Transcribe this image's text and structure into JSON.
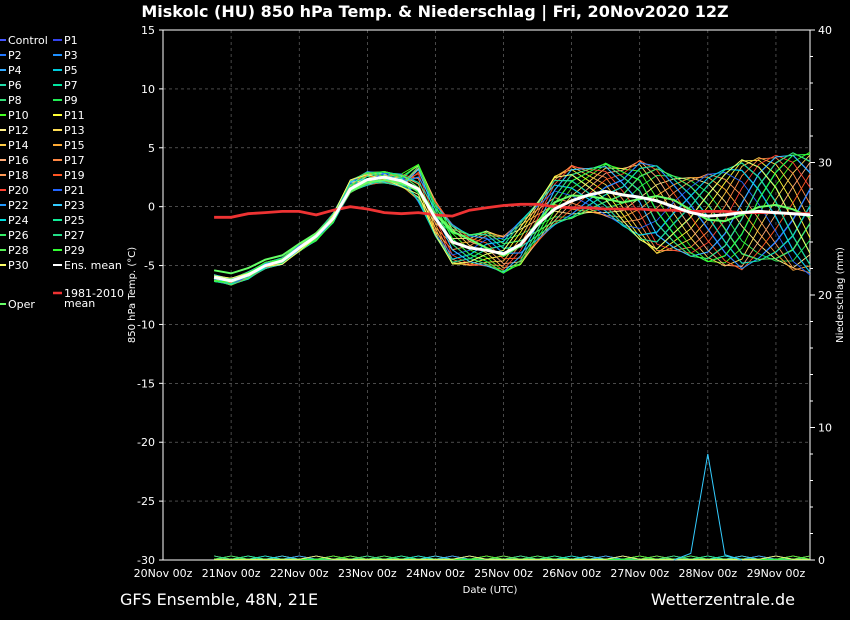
{
  "chart_data": {
    "type": "line",
    "title": "Miskolc  (HU)  850 hPa Temp. & Niederschlag | Fri, 20Nov2020 12Z",
    "footer_left": "GFS Ensemble, 48N, 21E",
    "footer_right": "Wetterzentrale.de",
    "xlabel": "Date (UTC)",
    "ylabel_left": "850 hPa Temp. (°C)",
    "ylabel_right": "Niederschlag (mm)",
    "ylim_left": [
      -30,
      15
    ],
    "ylim_right": [
      0,
      40
    ],
    "yticks_left": [
      15,
      10,
      5,
      0,
      -5,
      -10,
      -15,
      -20,
      -25,
      -30
    ],
    "yticks_right": [
      40,
      30,
      20,
      10,
      0
    ],
    "xlim": [
      0,
      228
    ],
    "xticks": [
      "20Nov 00z",
      "21Nov 00z",
      "22Nov 00z",
      "23Nov 00z",
      "24Nov 00z",
      "25Nov 00z",
      "26Nov 00z",
      "27Nov 00z",
      "28Nov 00z",
      "29Nov 00z"
    ],
    "grid": true,
    "legend": {
      "placement": "left",
      "columns": [
        [
          "Control",
          "P2",
          "P4",
          "P6",
          "P8",
          "P10",
          "P12",
          "P14",
          "P16",
          "P18",
          "P20",
          "P22",
          "P24",
          "P26",
          "P28",
          "P30"
        ],
        [
          "P1",
          "P3",
          "P5",
          "P7",
          "P9",
          "P11",
          "P13",
          "P15",
          "P17",
          "P19",
          "P21",
          "P23",
          "P25",
          "P27",
          "P29",
          "Ens. mean"
        ]
      ],
      "extra": [
        "Oper",
        "1981-2010",
        "mean"
      ]
    },
    "colors": {
      "control": "#4455ff",
      "p1": "#3344ee",
      "p2": "#2277ff",
      "p3": "#1e90ff",
      "p4": "#33aaff",
      "p5": "#00ccdd",
      "p6": "#22ddaa",
      "p7": "#00e5a0",
      "p8": "#33dd77",
      "p9": "#22ee55",
      "p10": "#44ff22",
      "p11": "#ffff33",
      "p12": "#ffee88",
      "p13": "#ffdd55",
      "p14": "#ffcc44",
      "p15": "#ffaa33",
      "p16": "#ffaa77",
      "p17": "#ff8844",
      "p18": "#ff9955",
      "p19": "#ff5522",
      "p20": "#ff4433",
      "p21": "#2266ff",
      "p22": "#2299ff",
      "p23": "#33ccff",
      "p24": "#00dddd",
      "p25": "#11ee99",
      "p26": "#33ee66",
      "p27": "#22dd88",
      "p28": "#55ee55",
      "p29": "#33ff33",
      "p30": "#ffff66",
      "mean": "#ffffff",
      "oper": "#66ff66",
      "climate": "#ee3333"
    },
    "x_hours": [
      18,
      24,
      30,
      36,
      42,
      48,
      54,
      60,
      66,
      72,
      78,
      84,
      90,
      96,
      102,
      108,
      114,
      120,
      126,
      132,
      138,
      144,
      150,
      156,
      162,
      168,
      174,
      180,
      186,
      192,
      198,
      204,
      210,
      216,
      222,
      228
    ],
    "ens_mean": [
      -6.0,
      -6.3,
      -5.8,
      -5.0,
      -4.6,
      -3.5,
      -2.5,
      -1.0,
      1.5,
      2.3,
      2.5,
      2.2,
      1.5,
      -1.0,
      -3.0,
      -3.5,
      -3.7,
      -4.0,
      -3.2,
      -1.5,
      -0.2,
      0.5,
      1.0,
      1.3,
      1.0,
      0.8,
      0.5,
      0.0,
      -0.5,
      -0.8,
      -0.7,
      -0.5,
      -0.4,
      -0.5,
      -0.6,
      -0.7
    ],
    "climate_mean": [
      -0.9,
      -0.9,
      -0.6,
      -0.5,
      -0.4,
      -0.4,
      -0.7,
      -0.3,
      0.0,
      -0.2,
      -0.5,
      -0.6,
      -0.5,
      -0.7,
      -0.8,
      -0.3,
      -0.1,
      0.1,
      0.2,
      0.2,
      0.0,
      -0.1,
      -0.1,
      -0.2,
      -0.2,
      -0.2,
      -0.3,
      -0.3,
      -0.4,
      -0.4,
      -0.4,
      -0.5,
      -0.5,
      -0.5,
      -0.6,
      -0.6
    ],
    "precip_spike": {
      "series": "p23",
      "x_hours": [
        186,
        192,
        198
      ],
      "values_mm": [
        0.5,
        8,
        0.4
      ]
    },
    "member_spread": {
      "x_hours": [
        18,
        24,
        30,
        36,
        42,
        48,
        54,
        60,
        66,
        72,
        78,
        84,
        90,
        96,
        102,
        108,
        114,
        120,
        126,
        132,
        138,
        144,
        150,
        156,
        162,
        168,
        174,
        180,
        186,
        192,
        198,
        204,
        210,
        216,
        222,
        228
      ],
      "min": [
        -6.8,
        -7.1,
        -6.6,
        -5.6,
        -5.3,
        -4.2,
        -3.4,
        -1.8,
        0.8,
        1.2,
        1.4,
        1.0,
        0.0,
        -3.0,
        -5.5,
        -5.5,
        -5.5,
        -6.2,
        -5.5,
        -3.5,
        -2.0,
        -1.5,
        -1.0,
        -1.5,
        -2.5,
        -4.0,
        -5.5,
        -5.0,
        -5.5,
        -6.0,
        -6.5,
        -7.0,
        -6.0,
        -6.0,
        -7.0,
        -7.5
      ],
      "max": [
        -5.5,
        -5.8,
        -5.2,
        -4.4,
        -4.0,
        -2.8,
        -1.8,
        0.0,
        3.2,
        3.8,
        3.6,
        3.5,
        4.3,
        1.0,
        -1.0,
        -2.0,
        -1.5,
        -2.0,
        -0.5,
        1.0,
        3.5,
        4.5,
        4.0,
        4.5,
        4.0,
        5.0,
        4.5,
        3.5,
        3.5,
        4.0,
        4.5,
        5.5,
        5.7,
        6.0,
        6.3,
        6.4
      ]
    }
  }
}
